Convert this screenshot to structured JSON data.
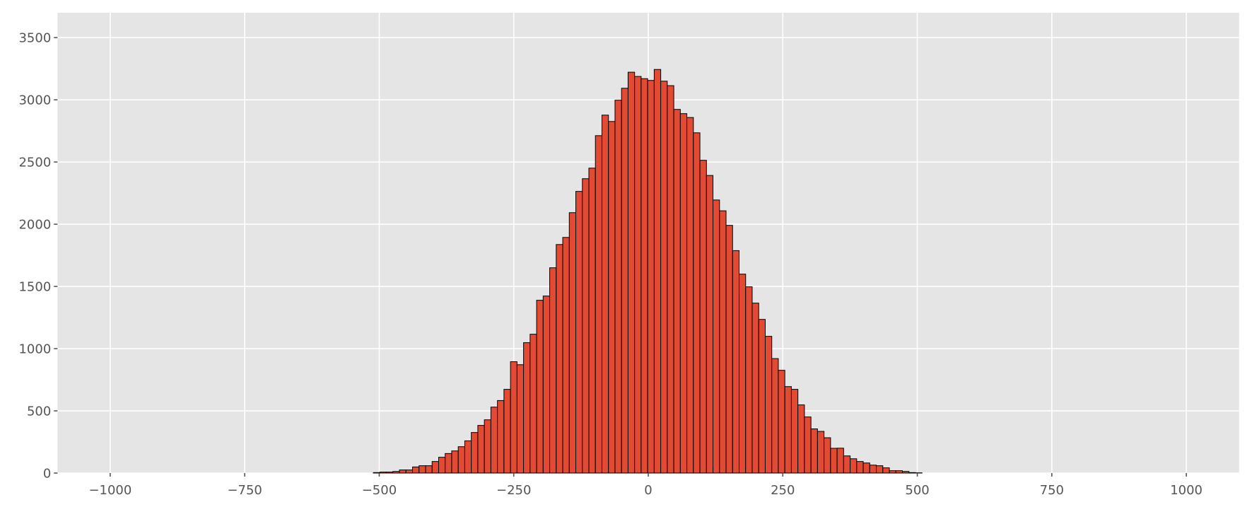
{
  "chart_data": {
    "type": "bar",
    "subtype": "histogram",
    "title": "",
    "xlabel": "",
    "ylabel": "",
    "xlim": [
      -1098,
      1098
    ],
    "ylim": [
      0,
      3700
    ],
    "grid": true,
    "legend": "none",
    "bin_start": -511,
    "bin_width": 12.14,
    "values": [
      4,
      8,
      8,
      13,
      25,
      25,
      49,
      59,
      59,
      93,
      127,
      157,
      178,
      212,
      259,
      326,
      383,
      428,
      530,
      583,
      673,
      895,
      871,
      1048,
      1116,
      1389,
      1423,
      1650,
      1837,
      1894,
      2093,
      2264,
      2366,
      2451,
      2712,
      2877,
      2826,
      2997,
      3093,
      3222,
      3188,
      3170,
      3156,
      3244,
      3150,
      3114,
      2923,
      2889,
      2858,
      2735,
      2514,
      2392,
      2195,
      2108,
      1991,
      1788,
      1599,
      1497,
      1366,
      1235,
      1099,
      920,
      826,
      695,
      673,
      548,
      451,
      355,
      335,
      284,
      199,
      200,
      138,
      115,
      93,
      81,
      64,
      59,
      42,
      19,
      19,
      13,
      4,
      2
    ],
    "x_ticks": [
      -1000,
      -750,
      -500,
      -250,
      0,
      250,
      500,
      750,
      1000
    ],
    "x_tick_labels": [
      "−1000",
      "−750",
      "−500",
      "−250",
      "0",
      "250",
      "500",
      "750",
      "1000"
    ],
    "y_ticks": [
      0,
      500,
      1000,
      1500,
      2000,
      2500,
      3000,
      3500
    ],
    "y_tick_labels": [
      "0",
      "500",
      "1000",
      "1500",
      "2000",
      "2500",
      "3000",
      "3500"
    ],
    "colors": {
      "bar_fill": "#E24A33",
      "bar_edge": "#000000",
      "axes_background": "#E5E5E5",
      "grid": "#FFFFFF",
      "tick_label": "#555555"
    }
  }
}
